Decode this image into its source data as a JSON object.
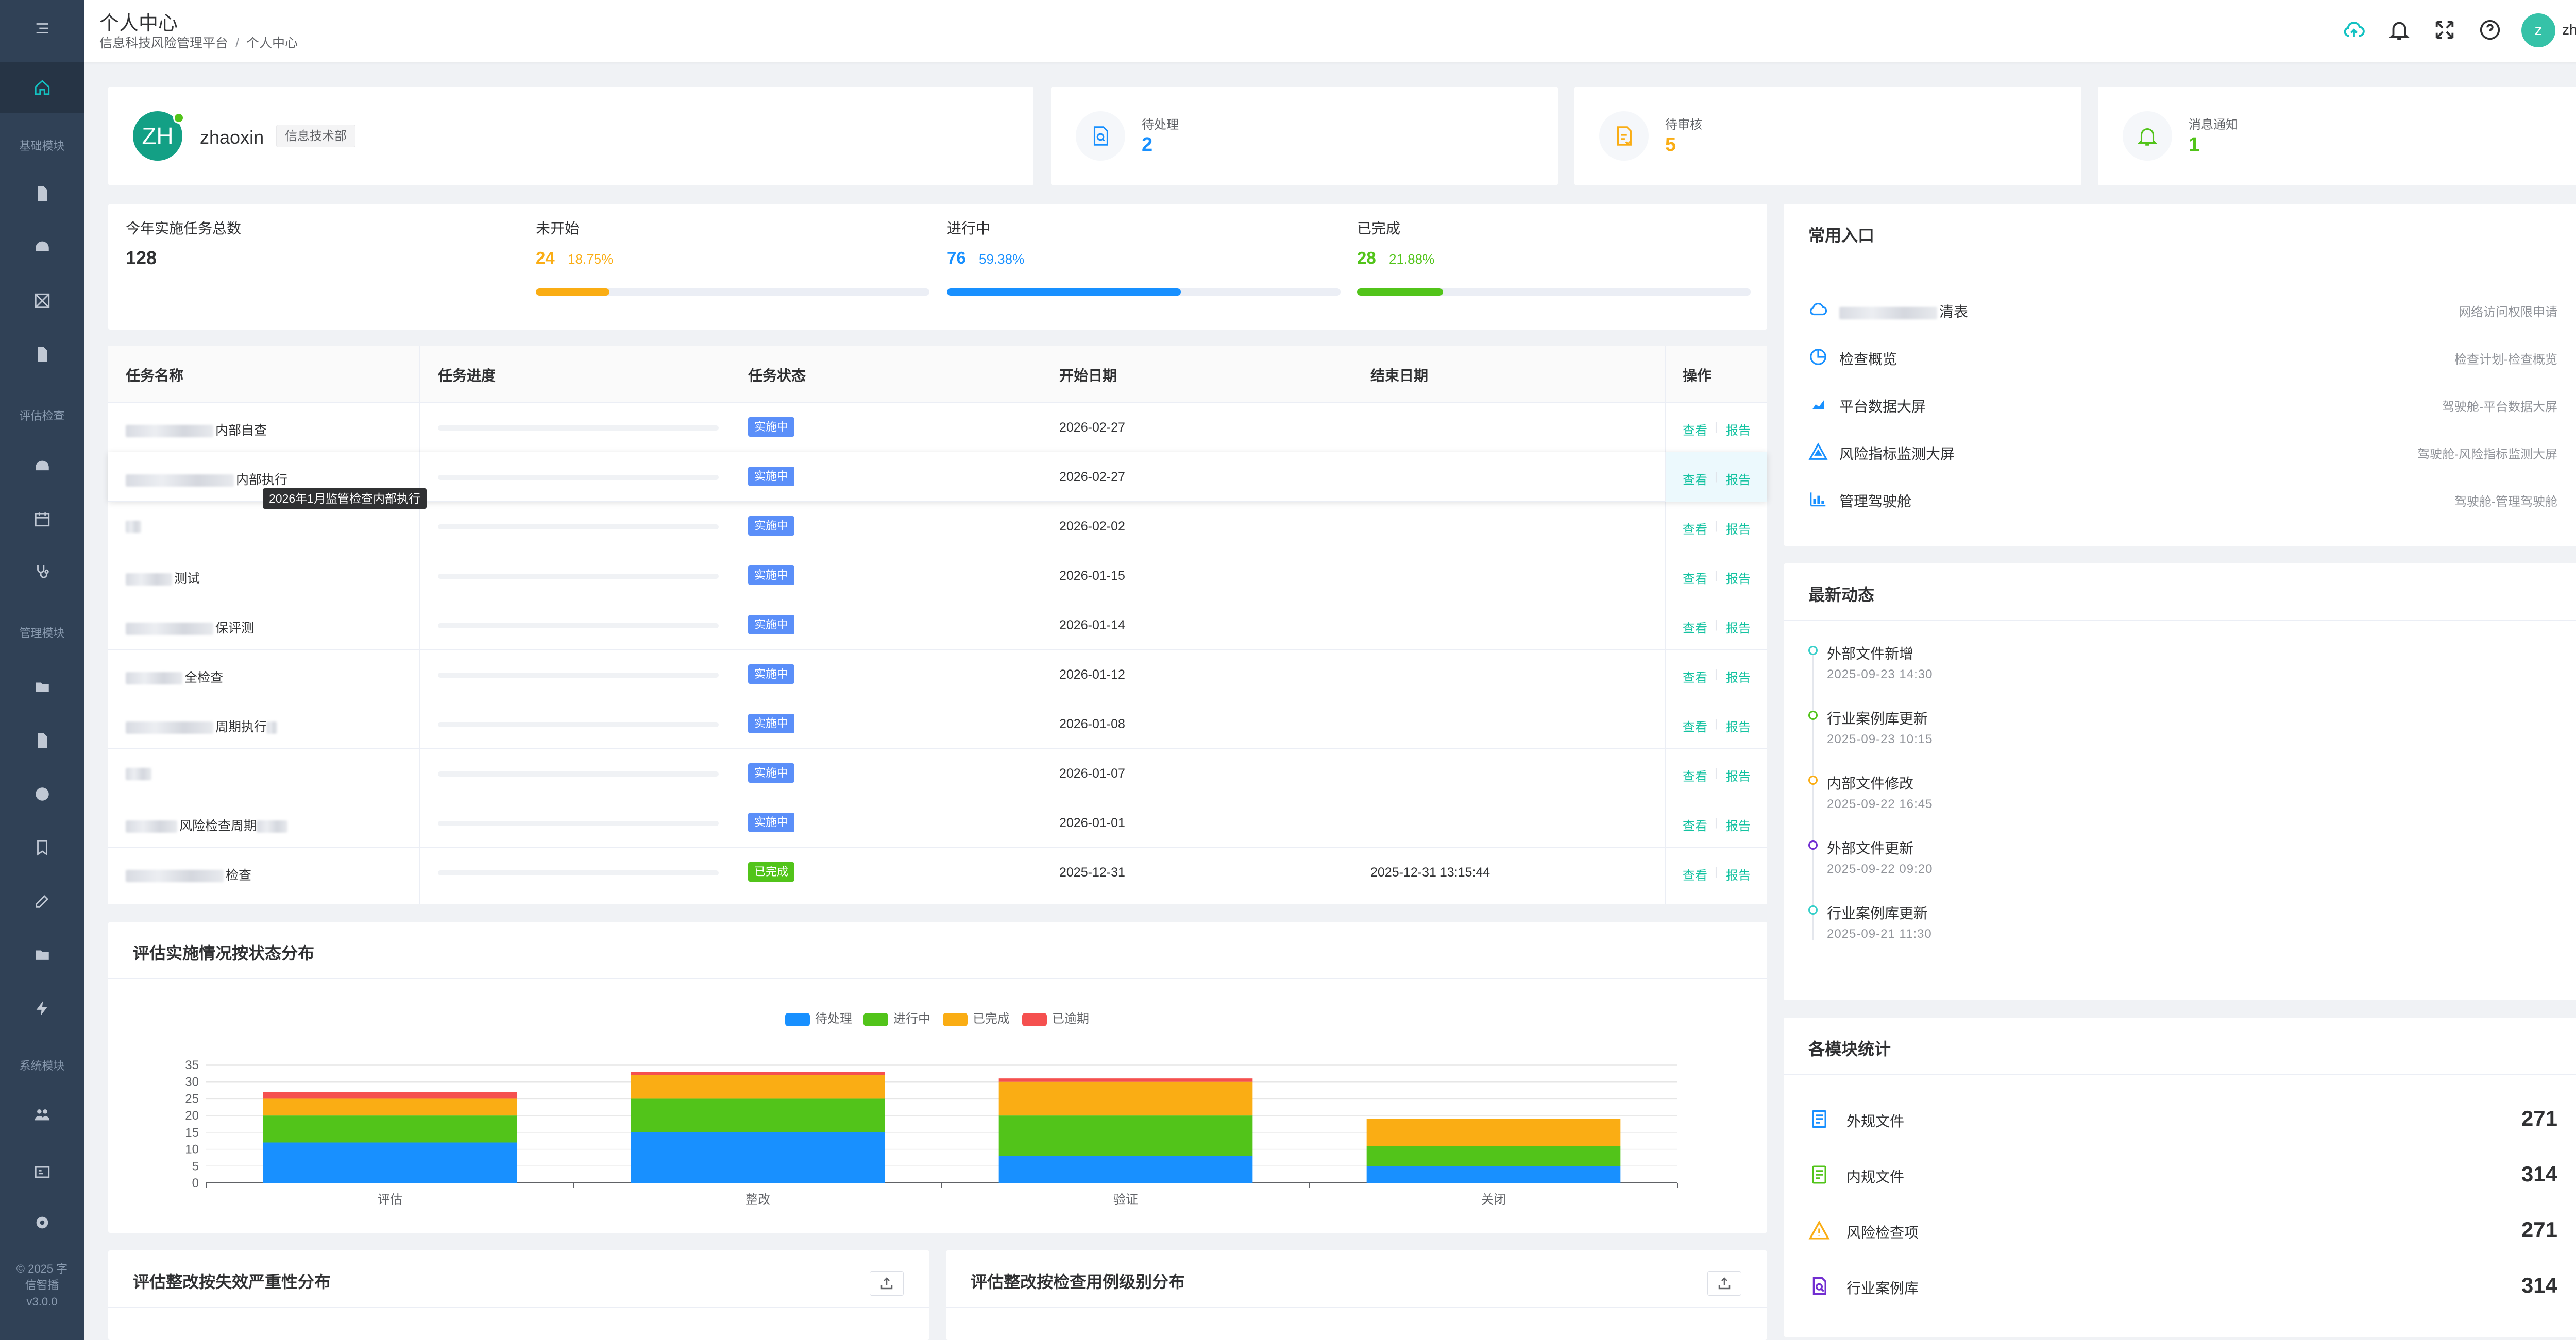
{
  "header": {
    "title": "个人中心",
    "breadcrumb": [
      "信息科技风险管理平台",
      "个人中心"
    ],
    "username": "zhaoxin",
    "avatar_letter": "z"
  },
  "sidebar": {
    "groups": [
      "基础模块",
      "评估检查",
      "管理模块",
      "系统模块"
    ],
    "footer": [
      "© 2025 字",
      "信智播",
      "v3.0.0"
    ]
  },
  "profile": {
    "avatar_text": "ZH",
    "name": "zhaoxin",
    "department": "信息技术部"
  },
  "stats": [
    {
      "label": "待处理",
      "value": "2",
      "color": "#1890ff"
    },
    {
      "label": "待审核",
      "value": "5",
      "color": "#faad14"
    },
    {
      "label": "消息通知",
      "value": "1",
      "color": "#52c41a"
    }
  ],
  "summary": {
    "total_label": "今年实施任务总数",
    "total": "128",
    "items": [
      {
        "label": "未开始",
        "count": "24",
        "pct": "18.75%",
        "fraction": 0.1875,
        "color": "#faad14"
      },
      {
        "label": "进行中",
        "count": "76",
        "pct": "59.38%",
        "fraction": 0.5938,
        "color": "#1890ff"
      },
      {
        "label": "已完成",
        "count": "28",
        "pct": "21.88%",
        "fraction": 0.2188,
        "color": "#52c41a"
      }
    ]
  },
  "table": {
    "columns": [
      "任务名称",
      "任务进度",
      "任务状态",
      "开始日期",
      "结束日期",
      "操作"
    ],
    "view_label": "查看",
    "report_label": "报告",
    "tooltip": "2026年1月监管检查内部执行",
    "rows": [
      {
        "name": "内部自查",
        "status": "实施中",
        "start": "2026-02-27",
        "end": ""
      },
      {
        "name": "内部执行",
        "status": "实施中",
        "start": "2026-02-27",
        "end": ""
      },
      {
        "name": "",
        "status": "实施中",
        "start": "2026-02-02",
        "end": ""
      },
      {
        "name": "测试",
        "status": "实施中",
        "start": "2026-01-15",
        "end": ""
      },
      {
        "name": "保评测",
        "status": "实施中",
        "start": "2026-01-14",
        "end": ""
      },
      {
        "name": "全检查",
        "status": "实施中",
        "start": "2026-01-12",
        "end": ""
      },
      {
        "name": "周期执行",
        "status": "实施中",
        "start": "2026-01-08",
        "end": ""
      },
      {
        "name": "",
        "status": "实施中",
        "start": "2026-01-07",
        "end": ""
      },
      {
        "name": "风险检查周期",
        "status": "实施中",
        "start": "2026-01-01",
        "end": ""
      },
      {
        "name": "检查",
        "status": "已完成",
        "start": "2025-12-31",
        "end": "2025-12-31 13:15:44"
      }
    ],
    "status_colors": {
      "实施中": "#5b8ff9",
      "已完成": "#52c41a"
    }
  },
  "chart_section": {
    "title": "评估实施情况按状态分布"
  },
  "chart_data": {
    "type": "bar",
    "stacked": true,
    "categories": [
      "评估",
      "整改",
      "验证",
      "关闭"
    ],
    "series": [
      {
        "name": "待处理",
        "values": [
          12,
          15,
          8,
          5
        ],
        "color": "#1890ff"
      },
      {
        "name": "进行中",
        "values": [
          8,
          10,
          12,
          6
        ],
        "color": "#52c41a"
      },
      {
        "name": "已完成",
        "values": [
          5,
          7,
          10,
          8
        ],
        "color": "#faad14"
      },
      {
        "name": "已逾期",
        "values": [
          2,
          1,
          1,
          0
        ],
        "color": "#f5504f"
      }
    ],
    "yticks": [
      0,
      5,
      10,
      15,
      20,
      25,
      30,
      35
    ],
    "ylim": [
      0,
      35
    ],
    "legend": "top-center",
    "grid": true
  },
  "bottom_cards": [
    {
      "title": "评估整改按失效严重性分布"
    },
    {
      "title": "评估整改按检查用例级别分布"
    }
  ],
  "quick_entries": {
    "title": "常用入口",
    "items": [
      {
        "name": "清表",
        "desc": "网络访问权限申请",
        "icon": "cloud-icon",
        "color": "#1890ff"
      },
      {
        "name": "检查概览",
        "desc": "检查计划-检查概览",
        "icon": "pie-chart-icon",
        "color": "#1890ff"
      },
      {
        "name": "平台数据大屏",
        "desc": "驾驶舱-平台数据大屏",
        "icon": "area-chart-icon",
        "color": "#1890ff"
      },
      {
        "name": "风险指标监测大屏",
        "desc": "驾驶舱-风险指标监测大屏",
        "icon": "warning-triangle-icon",
        "color": "#1890ff"
      },
      {
        "name": "管理驾驶舱",
        "desc": "驾驶舱-管理驾驶舱",
        "icon": "bar-chart-icon",
        "color": "#1890ff"
      }
    ]
  },
  "news": {
    "title": "最新动态",
    "items": [
      {
        "title": "外部文件新增",
        "time": "2025-09-23 14:30",
        "color": "#36cfc9"
      },
      {
        "title": "行业案例库更新",
        "time": "2025-09-23 10:15",
        "color": "#52c41a"
      },
      {
        "title": "内部文件修改",
        "time": "2025-09-22 16:45",
        "color": "#faad14"
      },
      {
        "title": "外部文件更新",
        "time": "2025-09-22 09:20",
        "color": "#722ed1"
      },
      {
        "title": "行业案例库更新",
        "time": "2025-09-21 11:30",
        "color": "#36cfc9"
      }
    ]
  },
  "modules": {
    "title": "各模块统计",
    "items": [
      {
        "name": "外规文件",
        "count": "271",
        "icon": "external-doc-icon",
        "color": "#1890ff"
      },
      {
        "name": "内规文件",
        "count": "314",
        "icon": "internal-doc-icon",
        "color": "#52c41a"
      },
      {
        "name": "风险检查项",
        "count": "271",
        "icon": "warning-icon",
        "color": "#faad14"
      },
      {
        "name": "行业案例库",
        "count": "314",
        "icon": "case-library-icon",
        "color": "#722ed1"
      }
    ]
  }
}
